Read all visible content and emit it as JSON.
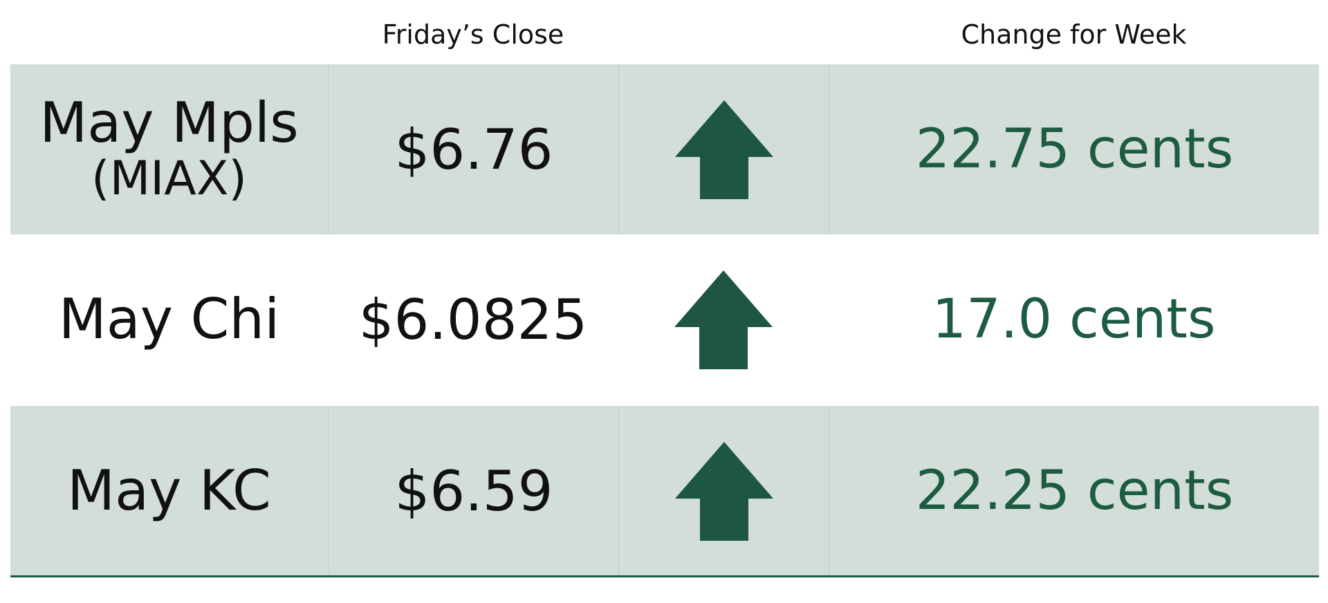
{
  "table": {
    "close_header": "Friday’s Close",
    "change_header": "Change for Week",
    "rows": [
      {
        "market": "May Mpls",
        "market_note": "(MIAX)",
        "close": "$6.76",
        "change": "22.75 cents"
      },
      {
        "market": "May Chi",
        "close": "$6.0825",
        "change": "17.0 cents"
      },
      {
        "market": "May KC",
        "close": "$6.59",
        "change": "22.25 cents"
      }
    ]
  }
}
